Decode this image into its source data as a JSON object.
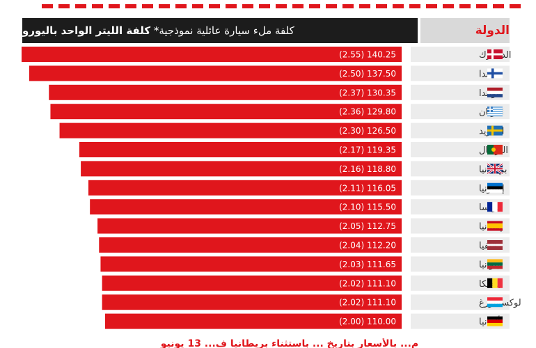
{
  "header": {
    "country_label": "الدولة",
    "cost_label_normal": "كلفة ملء سيارة عائلية نموذجية*",
    "cost_label_bold": "كلفة الليتر الواحد باليورو"
  },
  "footer": {
    "text": "م... بالأسعار بتاريخ ... باستثناء بريطانيا ف... 13 يونيو"
  },
  "colors": {
    "bar": "#e0161c",
    "header_dark": "#1c1c1c",
    "country_bg": "#ececec"
  },
  "chart_data": {
    "type": "bar",
    "orientation": "horizontal",
    "categories": [
      "الدنمارك",
      "فنلندا",
      "هولندا",
      "اليونان",
      "السويد",
      "البرتغال",
      "بريطانيا",
      "إستونيا",
      "فرنسا",
      "إسبانيا",
      "لاتفيا",
      "ليتوانيا",
      "بلجيكا",
      "لوكسمبورغ",
      "ألمانيا"
    ],
    "values": [
      140.25,
      137.5,
      130.35,
      129.8,
      126.5,
      119.35,
      118.8,
      116.05,
      115.5,
      112.75,
      112.2,
      111.65,
      111.1,
      111.1,
      110.0
    ],
    "per_liter": [
      2.55,
      2.5,
      2.37,
      2.36,
      2.3,
      2.17,
      2.16,
      2.11,
      2.1,
      2.05,
      2.04,
      2.03,
      2.02,
      2.02,
      2.0
    ],
    "labels": [
      "(2.55) 140.25",
      "(2.50) 137.50",
      "(2.37) 130.35",
      "(2.36) 129.80",
      "(2.30) 126.50",
      "(2.17) 119.35",
      "(2.16) 118.80",
      "(2.11) 116.05",
      "(2.10) 115.50",
      "(2.05) 112.75",
      "(2.04) 112.20",
      "(2.03) 111.65",
      "(2.02) 111.10",
      "(2.02) 111.10",
      "(2.00) 110.00"
    ],
    "flags": [
      "flag-denmark-icon",
      "flag-finland-icon",
      "flag-netherlands-icon",
      "flag-greece-icon",
      "flag-sweden-icon",
      "flag-portugal-icon",
      "flag-uk-icon",
      "flag-estonia-icon",
      "flag-france-icon",
      "flag-spain-icon",
      "flag-latvia-icon",
      "flag-lithuania-icon",
      "flag-belgium-icon",
      "flag-luxembourg-icon",
      "flag-germany-icon"
    ]
  }
}
